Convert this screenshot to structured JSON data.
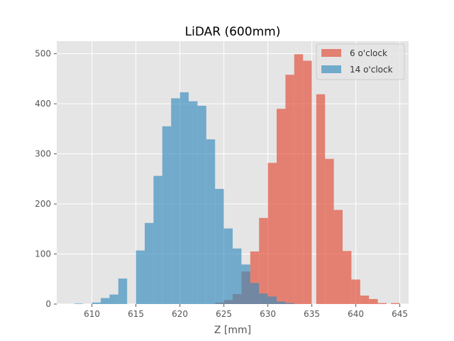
{
  "chart_data": {
    "type": "bar",
    "title": "LiDAR (600mm)",
    "xlabel": "Z [mm]",
    "ylabel": "",
    "xlim": [
      606.0,
      646.0
    ],
    "ylim": [
      0,
      525
    ],
    "xticks": [
      610,
      615,
      620,
      625,
      630,
      635,
      640,
      645
    ],
    "yticks": [
      0,
      100,
      200,
      300,
      400,
      500
    ],
    "grid": true,
    "legend_position": "top-right",
    "series": [
      {
        "name": "6 o'clock",
        "color": "#E24A33",
        "opacity": 0.65,
        "bins": [
          {
            "x0": 624.0,
            "x1": 625.0,
            "value": 3
          },
          {
            "x0": 625.0,
            "x1": 626.0,
            "value": 8
          },
          {
            "x0": 626.0,
            "x1": 627.0,
            "value": 20
          },
          {
            "x0": 627.0,
            "x1": 628.0,
            "value": 65
          },
          {
            "x0": 628.0,
            "x1": 629.0,
            "value": 105
          },
          {
            "x0": 629.0,
            "x1": 630.0,
            "value": 172
          },
          {
            "x0": 630.0,
            "x1": 631.0,
            "value": 282
          },
          {
            "x0": 631.0,
            "x1": 632.0,
            "value": 390
          },
          {
            "x0": 632.0,
            "x1": 633.0,
            "value": 458
          },
          {
            "x0": 633.0,
            "x1": 634.0,
            "value": 499
          },
          {
            "x0": 634.0,
            "x1": 635.0,
            "value": 486
          },
          {
            "x0": 635.5,
            "x1": 636.5,
            "value": 419
          },
          {
            "x0": 636.5,
            "x1": 637.5,
            "value": 290
          },
          {
            "x0": 637.5,
            "x1": 638.5,
            "value": 188
          },
          {
            "x0": 638.5,
            "x1": 639.5,
            "value": 106
          },
          {
            "x0": 639.5,
            "x1": 640.5,
            "value": 49
          },
          {
            "x0": 640.5,
            "x1": 641.5,
            "value": 17
          },
          {
            "x0": 641.5,
            "x1": 642.5,
            "value": 10
          },
          {
            "x0": 642.5,
            "x1": 643.5,
            "value": 2
          },
          {
            "x0": 644.0,
            "x1": 645.0,
            "value": 2
          }
        ]
      },
      {
        "name": "14 o'clock",
        "color": "#348ABD",
        "opacity": 0.65,
        "bins": [
          {
            "x0": 608.0,
            "x1": 609.0,
            "value": 1
          },
          {
            "x0": 610.0,
            "x1": 611.0,
            "value": 3
          },
          {
            "x0": 611.0,
            "x1": 612.0,
            "value": 12
          },
          {
            "x0": 612.0,
            "x1": 613.0,
            "value": 19
          },
          {
            "x0": 613.0,
            "x1": 614.0,
            "value": 51
          },
          {
            "x0": 615.0,
            "x1": 616.0,
            "value": 107
          },
          {
            "x0": 616.0,
            "x1": 617.0,
            "value": 162
          },
          {
            "x0": 617.0,
            "x1": 618.0,
            "value": 256
          },
          {
            "x0": 618.0,
            "x1": 619.0,
            "value": 355
          },
          {
            "x0": 619.0,
            "x1": 620.0,
            "value": 411
          },
          {
            "x0": 620.0,
            "x1": 621.0,
            "value": 423
          },
          {
            "x0": 621.0,
            "x1": 622.0,
            "value": 405
          },
          {
            "x0": 622.0,
            "x1": 623.0,
            "value": 396
          },
          {
            "x0": 623.0,
            "x1": 624.0,
            "value": 329
          },
          {
            "x0": 624.0,
            "x1": 625.0,
            "value": 230
          },
          {
            "x0": 625.0,
            "x1": 626.0,
            "value": 151
          },
          {
            "x0": 626.0,
            "x1": 627.0,
            "value": 111
          },
          {
            "x0": 627.0,
            "x1": 628.0,
            "value": 79
          },
          {
            "x0": 628.0,
            "x1": 629.0,
            "value": 42
          },
          {
            "x0": 629.0,
            "x1": 630.0,
            "value": 21
          },
          {
            "x0": 630.0,
            "x1": 631.0,
            "value": 15
          },
          {
            "x0": 631.0,
            "x1": 632.0,
            "value": 5
          },
          {
            "x0": 632.0,
            "x1": 633.0,
            "value": 2
          }
        ]
      }
    ]
  }
}
